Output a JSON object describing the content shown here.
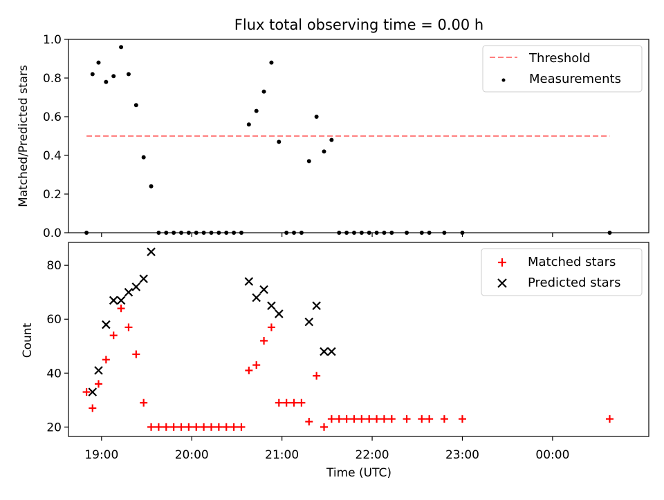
{
  "title": "Flux total observing time = 0.00 h",
  "xlabel": "Time (UTC)",
  "x_ticks": [
    "19:00",
    "20:00",
    "21:00",
    "22:00",
    "23:00",
    "00:00"
  ],
  "colors": {
    "threshold": "#ff7f7f",
    "measurements": "#000000",
    "matched": "#ff0000",
    "predicted": "#000000"
  },
  "chart_data": [
    {
      "type": "scatter",
      "ylabel": "Matched/Predicted stars",
      "xlim": [
        "18:38",
        "01:04"
      ],
      "ylim": [
        0,
        1.0
      ],
      "y_ticks": [
        "0.0",
        "0.2",
        "0.4",
        "0.6",
        "0.8",
        "1.0"
      ],
      "legend_position": "top-right",
      "threshold": {
        "name": "Threshold",
        "value": 0.5,
        "x_range": [
          "18:50",
          "00:38"
        ]
      },
      "series": [
        {
          "name": "Measurements",
          "x": [
            "18:50",
            "18:54",
            "18:58",
            "19:03",
            "19:08",
            "19:13",
            "19:18",
            "19:23",
            "19:28",
            "19:33",
            "19:38",
            "19:43",
            "19:48",
            "19:53",
            "19:58",
            "20:03",
            "20:08",
            "20:13",
            "20:18",
            "20:23",
            "20:28",
            "20:33",
            "20:38",
            "20:43",
            "20:48",
            "20:53",
            "20:58",
            "21:03",
            "21:08",
            "21:13",
            "21:18",
            "21:23",
            "21:28",
            "21:33",
            "21:38",
            "21:43",
            "21:48",
            "21:53",
            "21:58",
            "22:03",
            "22:08",
            "22:13",
            "22:23",
            "22:33",
            "22:38",
            "22:48",
            "23:00",
            "00:38"
          ],
          "y": [
            0.0,
            0.82,
            0.88,
            0.78,
            0.81,
            0.96,
            0.82,
            0.66,
            0.39,
            0.24,
            0.0,
            0.0,
            0.0,
            0.0,
            0.0,
            0.0,
            0.0,
            0.0,
            0.0,
            0.0,
            0.0,
            0.0,
            0.56,
            0.63,
            0.73,
            0.88,
            0.47,
            0.0,
            0.0,
            0.0,
            0.37,
            0.6,
            0.42,
            0.48,
            0.0,
            0.0,
            0.0,
            0.0,
            0.0,
            0.0,
            0.0,
            0.0,
            0.0,
            0.0,
            0.0,
            0.0,
            0.0,
            0.0
          ]
        }
      ]
    },
    {
      "type": "scatter",
      "ylabel": "Count",
      "xlim": [
        "18:38",
        "01:04"
      ],
      "ylim": [
        16.5,
        88.5
      ],
      "y_ticks": [
        "20",
        "40",
        "60",
        "80"
      ],
      "legend_position": "top-right",
      "series": [
        {
          "name": "Matched stars",
          "x": [
            "18:50",
            "18:54",
            "18:58",
            "19:03",
            "19:08",
            "19:13",
            "19:18",
            "19:23",
            "19:28",
            "19:33",
            "19:38",
            "19:43",
            "19:48",
            "19:53",
            "19:58",
            "20:03",
            "20:08",
            "20:13",
            "20:18",
            "20:23",
            "20:28",
            "20:33",
            "20:38",
            "20:43",
            "20:48",
            "20:53",
            "20:58",
            "21:03",
            "21:08",
            "21:13",
            "21:18",
            "21:23",
            "21:28",
            "21:33",
            "21:38",
            "21:43",
            "21:48",
            "21:53",
            "21:58",
            "22:03",
            "22:08",
            "22:13",
            "22:23",
            "22:33",
            "22:38",
            "22:48",
            "23:00",
            "00:38"
          ],
          "y": [
            33,
            27,
            36,
            45,
            54,
            64,
            57,
            47,
            29,
            20,
            20,
            20,
            20,
            20,
            20,
            20,
            20,
            20,
            20,
            20,
            20,
            20,
            41,
            43,
            52,
            57,
            29,
            29,
            29,
            29,
            22,
            39,
            20,
            23,
            23,
            23,
            23,
            23,
            23,
            23,
            23,
            23,
            23,
            23,
            23,
            23,
            23,
            23
          ]
        },
        {
          "name": "Predicted stars",
          "x": [
            "18:54",
            "18:58",
            "19:03",
            "19:08",
            "19:13",
            "19:18",
            "19:23",
            "19:28",
            "19:33",
            "20:38",
            "20:43",
            "20:48",
            "20:53",
            "20:58",
            "21:18",
            "21:23",
            "21:28",
            "21:33"
          ],
          "y": [
            33,
            41,
            58,
            67,
            67,
            70,
            72,
            75,
            85,
            74,
            68,
            71,
            65,
            62,
            59,
            65,
            48,
            48
          ]
        }
      ]
    }
  ]
}
